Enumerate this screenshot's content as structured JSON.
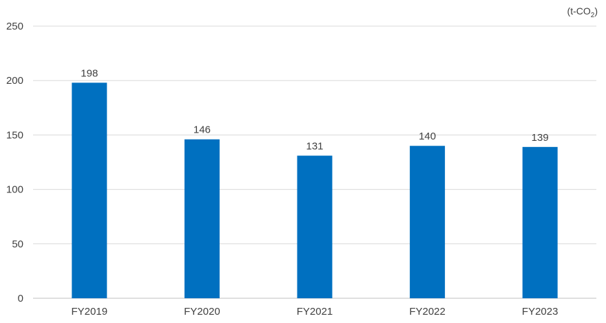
{
  "chart_data": {
    "type": "bar",
    "title": "",
    "xlabel": "",
    "ylabel": "",
    "unit": "(t-CO",
    "unit_subscript": "2",
    "unit_close": ")",
    "categories": [
      "FY2019",
      "FY2020",
      "FY2021",
      "FY2022",
      "FY2023"
    ],
    "values": [
      198,
      146,
      131,
      140,
      139
    ],
    "value_labels": [
      "198",
      "146",
      "131",
      "140",
      "139"
    ],
    "ylim": [
      0,
      250
    ],
    "yticks": [
      0,
      50,
      100,
      150,
      200,
      250
    ],
    "ytick_labels": [
      "0",
      "50",
      "100",
      "150",
      "200",
      "250"
    ],
    "grid": true,
    "legend": "none",
    "bar_color": "#0070c0"
  }
}
